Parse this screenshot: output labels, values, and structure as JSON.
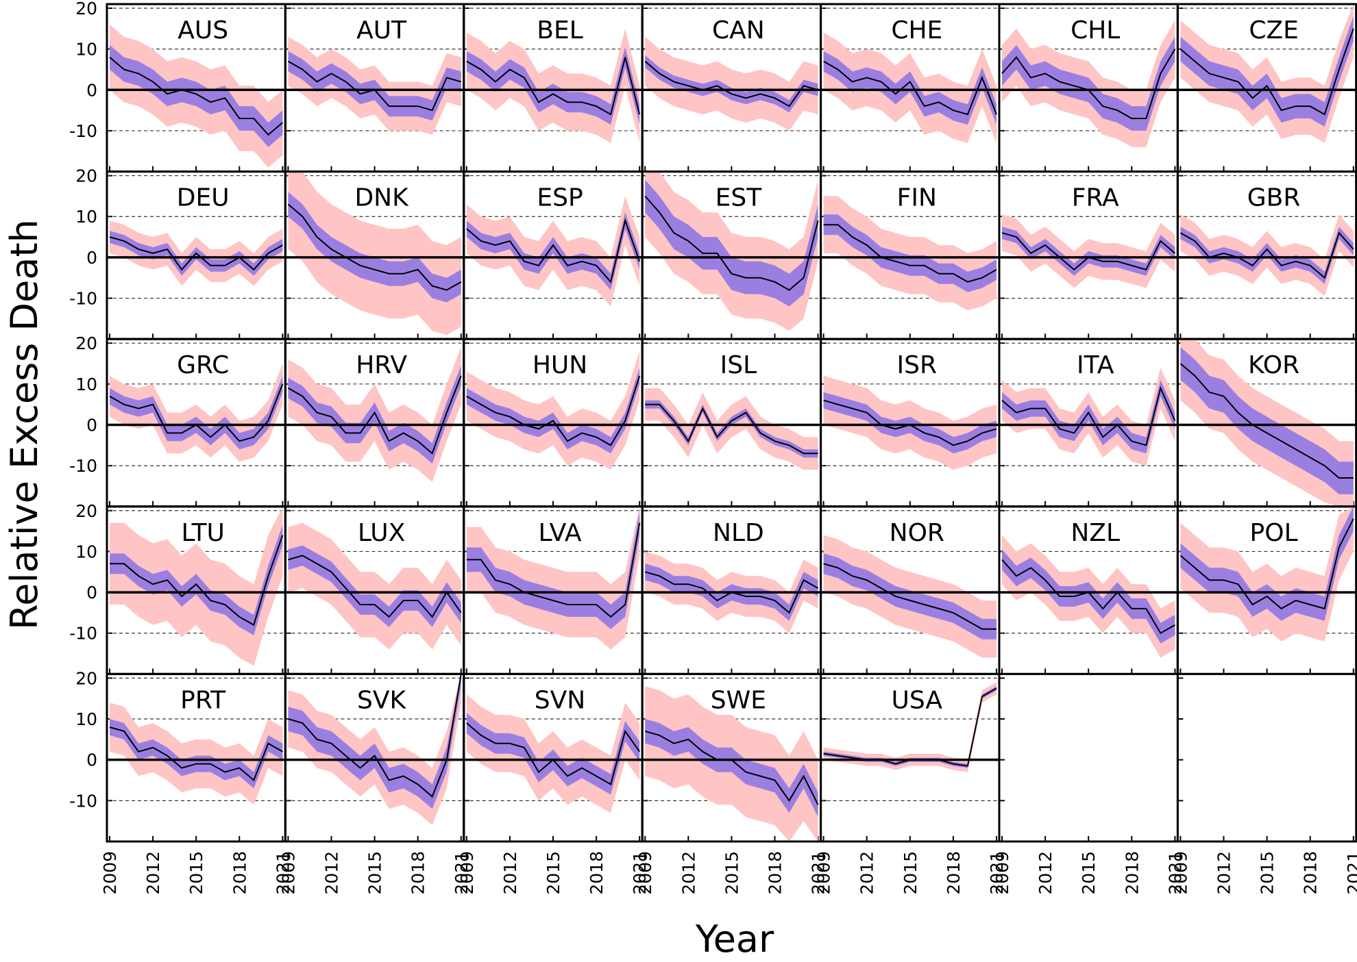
{
  "chart_data": {
    "type": "line",
    "xlabel": "Year",
    "ylabel": "Relative Excess Death",
    "x_ticks": [
      2009,
      2012,
      2015,
      2018,
      2021
    ],
    "y_ticks": [
      -10,
      0,
      10,
      20
    ],
    "xlim": [
      2009,
      2021
    ],
    "ylim": [
      -20,
      21
    ],
    "dashed_gridlines": [
      -20,
      -10,
      10,
      20
    ],
    "zero_line": 0,
    "colors": {
      "line": "#000000",
      "inner_band": "#9b7fe0",
      "outer_band": "#ffc4c4"
    },
    "years": [
      2009,
      2010,
      2011,
      2012,
      2013,
      2014,
      2015,
      2016,
      2017,
      2018,
      2019,
      2020,
      2021
    ],
    "panels": [
      {
        "name": "AUS",
        "values": [
          8,
          5,
          4,
          2,
          -1,
          0,
          -1,
          -3,
          -2,
          -7,
          -7,
          -11,
          -8
        ],
        "inner": 3,
        "outer": 8
      },
      {
        "name": "AUT",
        "values": [
          7,
          5,
          2,
          4,
          2,
          -1,
          0,
          -4,
          -4,
          -4,
          -5,
          3,
          2
        ],
        "inner": 2.5,
        "outer": 6
      },
      {
        "name": "BEL",
        "values": [
          7,
          5,
          2,
          5,
          3,
          -3,
          -1,
          -3,
          -3,
          -4,
          -6,
          8,
          -6
        ],
        "inner": 2.5,
        "outer": 7
      },
      {
        "name": "CAN",
        "values": [
          7,
          4,
          2,
          1,
          0,
          1,
          -1,
          -2,
          -1,
          -2,
          -4,
          1,
          0
        ],
        "inner": 1.5,
        "outer": 6
      },
      {
        "name": "CHE",
        "values": [
          7,
          5,
          2,
          3,
          2,
          -1,
          2,
          -4,
          -3,
          -5,
          -6,
          3,
          -6
        ],
        "inner": 2.5,
        "outer": 7
      },
      {
        "name": "CHL",
        "values": [
          4,
          8,
          3,
          4,
          2,
          1,
          0,
          -4,
          -5,
          -7,
          -7,
          4,
          10
        ],
        "inner": 3,
        "outer": 7
      },
      {
        "name": "CZE",
        "values": [
          10,
          7,
          4,
          3,
          2,
          -2,
          1,
          -5,
          -4,
          -4,
          -6,
          5,
          15
        ],
        "inner": 3,
        "outer": 7
      },
      {
        "name": "DEU",
        "values": [
          5,
          4,
          2,
          1,
          2,
          -3,
          1,
          -2,
          -2,
          0,
          -3,
          1,
          3
        ],
        "inner": 1.5,
        "outer": 4
      },
      {
        "name": "DNK",
        "values": [
          13,
          10,
          5,
          2,
          0,
          -2,
          -3,
          -4,
          -4,
          -3,
          -7,
          -8,
          -6
        ],
        "inner": 3,
        "outer": 11
      },
      {
        "name": "ESP",
        "values": [
          7,
          4,
          3,
          4,
          -1,
          -2,
          3,
          -2,
          -1,
          -2,
          -6,
          9,
          -1
        ],
        "inner": 2,
        "outer": 6
      },
      {
        "name": "EST",
        "values": [
          15,
          11,
          6,
          4,
          1,
          1,
          -4,
          -5,
          -5,
          -6,
          -8,
          -5,
          9
        ],
        "inner": 4,
        "outer": 10
      },
      {
        "name": "FIN",
        "values": [
          8,
          8,
          5,
          3,
          0,
          -1,
          -2,
          -2,
          -4,
          -4,
          -6,
          -5,
          -3
        ],
        "inner": 2.5,
        "outer": 7
      },
      {
        "name": "FRA",
        "values": [
          6,
          5,
          1,
          3,
          0,
          -3,
          0,
          -1,
          -1,
          -2,
          -3,
          4,
          1
        ],
        "inner": 1.5,
        "outer": 4.5
      },
      {
        "name": "GBR",
        "values": [
          6,
          4,
          0,
          1,
          0,
          -2,
          2,
          -2,
          -1,
          -2,
          -5,
          6,
          2
        ],
        "inner": 1.5,
        "outer": 4.5
      },
      {
        "name": "GRC",
        "values": [
          7,
          5,
          4,
          5,
          -2,
          -2,
          0,
          -3,
          0,
          -4,
          -3,
          1,
          10
        ],
        "inner": 2,
        "outer": 5
      },
      {
        "name": "HRV",
        "values": [
          9,
          7,
          3,
          2,
          -2,
          -2,
          3,
          -4,
          -2,
          -4,
          -7,
          3,
          12
        ],
        "inner": 2.5,
        "outer": 7
      },
      {
        "name": "HUN",
        "values": [
          7,
          5,
          3,
          2,
          0,
          -1,
          1,
          -4,
          -2,
          -3,
          -5,
          1,
          12
        ],
        "inner": 2,
        "outer": 6
      },
      {
        "name": "ISL",
        "values": [
          5,
          5,
          1,
          -4,
          4,
          -3,
          1,
          3,
          -2,
          -4,
          -5,
          -7,
          -7
        ],
        "inner": 1,
        "outer": 4
      },
      {
        "name": "ISR",
        "values": [
          6,
          5,
          4,
          3,
          0,
          -1,
          0,
          -2,
          -3,
          -5,
          -4,
          -2,
          -1
        ],
        "inner": 2,
        "outer": 6
      },
      {
        "name": "ITA",
        "values": [
          6,
          3,
          4,
          4,
          -1,
          -2,
          3,
          -3,
          0,
          -4,
          -5,
          9,
          1
        ],
        "inner": 2,
        "outer": 5
      },
      {
        "name": "KOR",
        "values": [
          15,
          12,
          8,
          7,
          3,
          0,
          -2,
          -4,
          -6,
          -8,
          -10,
          -13,
          -13
        ],
        "inner": 4,
        "outer": 9
      },
      {
        "name": "LTU",
        "values": [
          7,
          7,
          4,
          2,
          3,
          -1,
          2,
          -2,
          -3,
          -6,
          -8,
          4,
          14
        ],
        "inner": 2.5,
        "outer": 10
      },
      {
        "name": "LUX",
        "values": [
          8,
          9,
          7,
          5,
          1,
          -3,
          -3,
          -6,
          -2,
          -2,
          -6,
          0,
          -5
        ],
        "inner": 2.5,
        "outer": 8
      },
      {
        "name": "LVA",
        "values": [
          8,
          8,
          3,
          2,
          0,
          -1,
          -2,
          -3,
          -3,
          -3,
          -6,
          -3,
          17
        ],
        "inner": 3,
        "outer": 8
      },
      {
        "name": "NLD",
        "values": [
          5,
          4,
          2,
          2,
          1,
          -2,
          0,
          -1,
          -1,
          -2,
          -5,
          3,
          1
        ],
        "inner": 2,
        "outer": 5
      },
      {
        "name": "NOR",
        "values": [
          7,
          6,
          4,
          3,
          1,
          -1,
          -2,
          -3,
          -4,
          -5,
          -7,
          -9,
          -9
        ],
        "inner": 2.5,
        "outer": 7
      },
      {
        "name": "NZL",
        "values": [
          8,
          4,
          6,
          3,
          -1,
          -1,
          0,
          -4,
          0,
          -4,
          -4,
          -10,
          -8
        ],
        "inner": 2.5,
        "outer": 6
      },
      {
        "name": "POL",
        "values": [
          9,
          6,
          3,
          3,
          2,
          -3,
          -1,
          -4,
          -2,
          -3,
          -4,
          11,
          18
        ],
        "inner": 3,
        "outer": 8
      },
      {
        "name": "PRT",
        "values": [
          8,
          7,
          2,
          3,
          1,
          -2,
          -1,
          -1,
          -3,
          -2,
          -5,
          4,
          2
        ],
        "inner": 2,
        "outer": 6
      },
      {
        "name": "SVK",
        "values": [
          10,
          9,
          5,
          4,
          1,
          -2,
          1,
          -5,
          -4,
          -6,
          -9,
          0,
          21
        ],
        "inner": 3,
        "outer": 7
      },
      {
        "name": "SVN",
        "values": [
          9,
          6,
          4,
          4,
          3,
          -3,
          0,
          -4,
          -2,
          -4,
          -6,
          7,
          2
        ],
        "inner": 2.5,
        "outer": 7
      },
      {
        "name": "SWE",
        "values": [
          7,
          6,
          4,
          5,
          2,
          0,
          0,
          -3,
          -4,
          -5,
          -10,
          -4,
          -11
        ],
        "inner": 3,
        "outer": 11
      },
      {
        "name": "USA",
        "values": [
          1.5,
          1,
          0.5,
          0,
          0,
          -1,
          0,
          0,
          0,
          -1,
          -1.5,
          15.5,
          17.5
        ],
        "inner": 0.5,
        "outer": 1.5
      }
    ]
  }
}
